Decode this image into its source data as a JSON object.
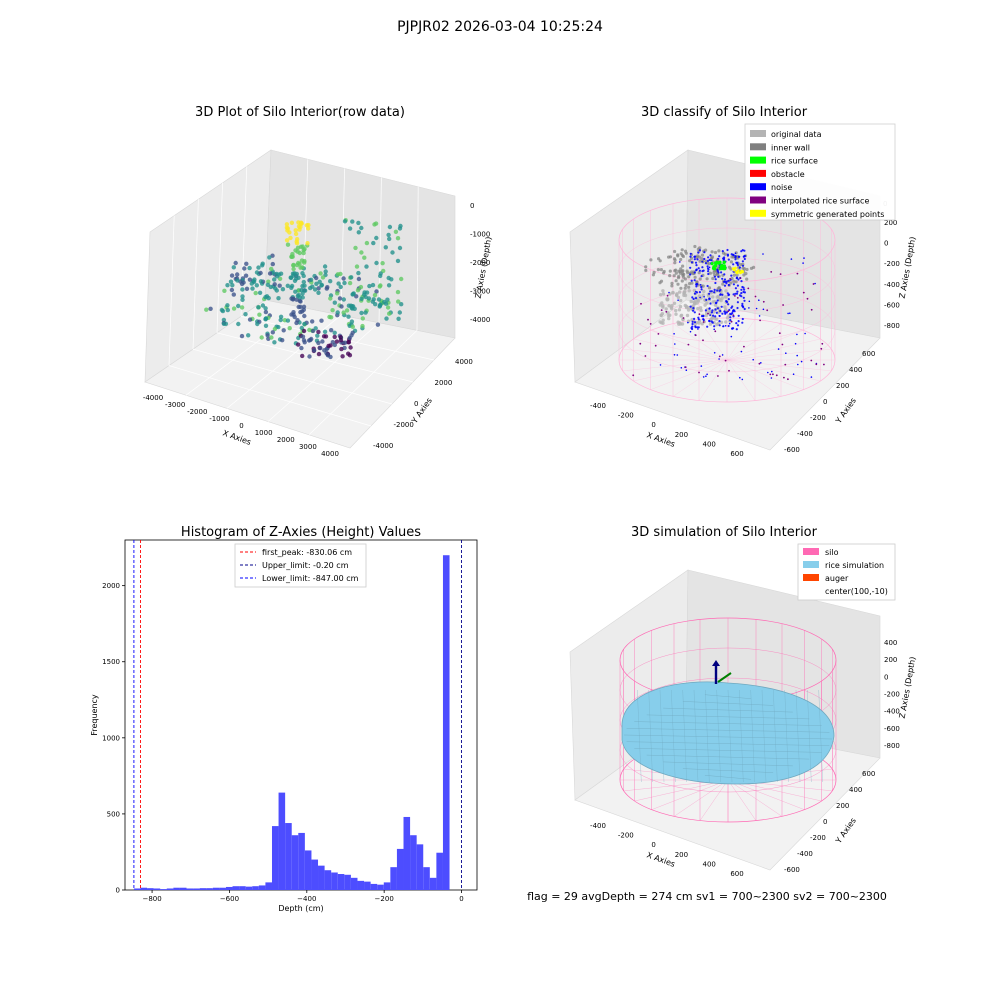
{
  "figure": {
    "suptitle": "PJPJR02 2026-03-04 10:25:24",
    "status_line": "flag = 29  avgDepth = 274 cm  sv1 = 700~2300  sv2 = 700~2300"
  },
  "chart_data": [
    {
      "type": "scatter",
      "title": "3D Plot of Silo Interior(row data)",
      "xlabel": "X Axies",
      "ylabel": "Y Axies",
      "zlabel": "Z Axies (Depth)",
      "x_ticks": [
        "-4000",
        "-3000",
        "-2000",
        "-1000",
        "0",
        "1000",
        "2000",
        "3000",
        "4000"
      ],
      "y_ticks": [
        "-4000",
        "-2000",
        "0",
        "2000",
        "4000"
      ],
      "z_ticks": [
        "0",
        "-1000",
        "-2000",
        "-3000",
        "-4000"
      ],
      "colormap": [
        "#440154",
        "#3b528b",
        "#21918c",
        "#5ec962",
        "#fde725"
      ]
    },
    {
      "type": "scatter",
      "title": "3D classify of Silo Interior",
      "xlabel": "X Axies",
      "ylabel": "Y Axies",
      "zlabel": "Z Axies (Depth)",
      "x_ticks": [
        "-400",
        "-200",
        "0",
        "200",
        "400",
        "600"
      ],
      "y_ticks": [
        "-600",
        "-400",
        "-200",
        "0",
        "200",
        "400",
        "600"
      ],
      "z_ticks": [
        "200",
        "0",
        "-200",
        "-400",
        "-600",
        "-800"
      ],
      "z_top_tick": "0",
      "legend": [
        {
          "label": "original data",
          "color": "#b4b4b4"
        },
        {
          "label": "inner wall",
          "color": "#808080"
        },
        {
          "label": "rice surface",
          "color": "#00ff00"
        },
        {
          "label": "obstacle",
          "color": "#ff0000"
        },
        {
          "label": "noise",
          "color": "#0000ff"
        },
        {
          "label": "interpolated rice surface",
          "color": "#800080"
        },
        {
          "label": "symmetric generated points",
          "color": "#ffff00"
        }
      ]
    },
    {
      "type": "bar",
      "title": "Histogram of Z-Axies (Height) Values",
      "xlabel": "Depth (cm)",
      "ylabel": "Frequency",
      "xlim": [
        -870,
        40
      ],
      "ylim": [
        0,
        2300
      ],
      "x_ticks": [
        {
          "v": -800,
          "label": "−800"
        },
        {
          "v": -600,
          "label": "−600"
        },
        {
          "v": -400,
          "label": "−400"
        },
        {
          "v": -200,
          "label": "−200"
        },
        {
          "v": 0,
          "label": "0"
        }
      ],
      "y_ticks": [
        {
          "v": 0,
          "label": "0"
        },
        {
          "v": 500,
          "label": "500"
        },
        {
          "v": 1000,
          "label": "1000"
        },
        {
          "v": 1500,
          "label": "1500"
        },
        {
          "v": 2000,
          "label": "2000"
        }
      ],
      "bar_color": "#4d4dff",
      "bin_edges": [
        -847,
        -830,
        -813,
        -796,
        -779,
        -762,
        -745,
        -728,
        -711,
        -694,
        -677,
        -660,
        -643,
        -626,
        -609,
        -592,
        -575,
        -558,
        -541,
        -524,
        -507,
        -490,
        -473,
        -456,
        -439,
        -422,
        -405,
        -388,
        -371,
        -354,
        -337,
        -320,
        -303,
        -286,
        -269,
        -252,
        -235,
        -218,
        -201,
        -184,
        -167,
        -150,
        -133,
        -116,
        -99,
        -82,
        -65,
        -48,
        -31,
        -14,
        -0.2
      ],
      "values": [
        10,
        15,
        12,
        10,
        6,
        10,
        15,
        15,
        10,
        10,
        12,
        12,
        15,
        15,
        20,
        25,
        25,
        22,
        25,
        30,
        50,
        420,
        640,
        440,
        360,
        375,
        260,
        200,
        160,
        130,
        115,
        105,
        100,
        80,
        60,
        55,
        40,
        35,
        50,
        150,
        270,
        480,
        360,
        300,
        150,
        80,
        245,
        2200,
        0,
        0
      ],
      "lines": [
        {
          "label": "first_peak: -830.06 cm",
          "x": -830.06,
          "color": "#ff0000"
        },
        {
          "label": "Upper_limit: -0.20 cm",
          "x": -0.2,
          "color": "#00008b"
        },
        {
          "label": "Lower_limit: -847.00 cm",
          "x": -847.0,
          "color": "#0000ff"
        }
      ]
    },
    {
      "type": "other",
      "title": "3D simulation of Silo Interior",
      "xlabel": "X Axies",
      "ylabel": "Y Axies",
      "zlabel": "Z Axies (Depth)",
      "x_ticks": [
        "-400",
        "-200",
        "0",
        "200",
        "400",
        "600"
      ],
      "y_ticks": [
        "-600",
        "-400",
        "-200",
        "0",
        "200",
        "400",
        "600"
      ],
      "z_ticks": [
        "400",
        "200",
        "0",
        "-200",
        "-400",
        "-600",
        "-800"
      ],
      "legend": [
        {
          "label": "silo",
          "color": "#ff69b4"
        },
        {
          "label": "rice simulation",
          "color": "#87ceeb"
        },
        {
          "label": "auger",
          "color": "#ff4500"
        },
        {
          "label": "center(100,-10)",
          "color": "none"
        }
      ]
    }
  ]
}
